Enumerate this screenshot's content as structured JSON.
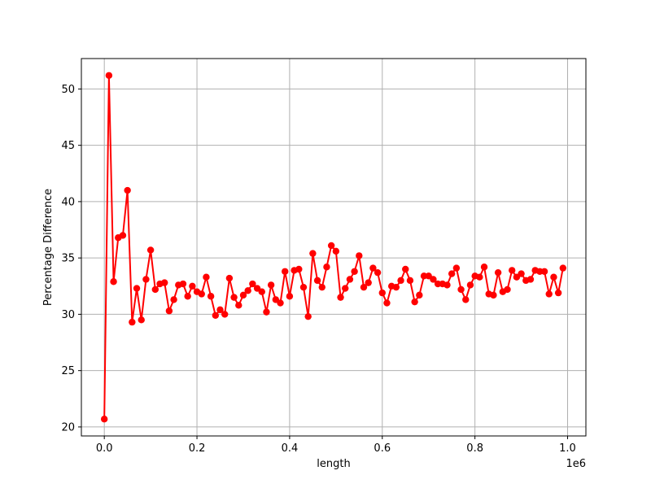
{
  "chart_data": {
    "type": "line",
    "xlabel": "length",
    "ylabel": "Percentage Difference",
    "x_offset_label": "1e6",
    "xlim": [
      -0.0495,
      1.0395
    ],
    "ylim": [
      19.2,
      52.7
    ],
    "xticks": [
      0.0,
      0.2,
      0.4,
      0.6,
      0.8,
      1.0
    ],
    "xtick_labels": [
      "0.0",
      "0.2",
      "0.4",
      "0.6",
      "0.8",
      "1.0"
    ],
    "yticks": [
      20,
      25,
      30,
      35,
      40,
      45,
      50
    ],
    "ytick_labels": [
      "20",
      "25",
      "30",
      "35",
      "40",
      "45",
      "50"
    ],
    "grid": true,
    "series": [
      {
        "color": "#ff0000",
        "marker": "circle",
        "x": [
          0.0,
          0.01,
          0.02,
          0.03,
          0.04,
          0.05,
          0.06,
          0.07,
          0.08,
          0.09,
          0.1,
          0.11,
          0.12,
          0.13,
          0.14,
          0.15,
          0.16,
          0.17,
          0.18,
          0.19,
          0.2,
          0.21,
          0.22,
          0.23,
          0.24,
          0.25,
          0.26,
          0.27,
          0.28,
          0.29,
          0.3,
          0.31,
          0.32,
          0.33,
          0.34,
          0.35,
          0.36,
          0.37,
          0.38,
          0.39,
          0.4,
          0.41,
          0.42,
          0.43,
          0.44,
          0.45,
          0.46,
          0.47,
          0.48,
          0.49,
          0.5,
          0.51,
          0.52,
          0.53,
          0.54,
          0.55,
          0.56,
          0.57,
          0.58,
          0.59,
          0.6,
          0.61,
          0.62,
          0.63,
          0.64,
          0.65,
          0.66,
          0.67,
          0.68,
          0.69,
          0.7,
          0.71,
          0.72,
          0.73,
          0.74,
          0.75,
          0.76,
          0.77,
          0.78,
          0.79,
          0.8,
          0.81,
          0.82,
          0.83,
          0.84,
          0.85,
          0.86,
          0.87,
          0.88,
          0.89,
          0.9,
          0.91,
          0.92,
          0.93,
          0.94,
          0.95,
          0.96,
          0.97,
          0.98,
          0.99
        ],
        "y": [
          20.7,
          51.2,
          32.9,
          36.8,
          37.0,
          41.0,
          29.3,
          32.3,
          29.5,
          33.1,
          35.7,
          32.2,
          32.7,
          32.8,
          30.3,
          31.3,
          32.6,
          32.7,
          31.6,
          32.5,
          32.0,
          31.8,
          33.3,
          31.6,
          29.9,
          30.4,
          30.0,
          33.2,
          31.5,
          30.8,
          31.7,
          32.1,
          32.7,
          32.3,
          32.0,
          30.2,
          32.6,
          31.3,
          31.0,
          33.8,
          31.6,
          33.9,
          34.0,
          32.4,
          29.8,
          35.4,
          33.0,
          32.4,
          34.2,
          36.1,
          35.6,
          31.5,
          32.3,
          33.1,
          33.8,
          35.2,
          32.4,
          32.8,
          34.1,
          33.7,
          31.9,
          31.0,
          32.5,
          32.4,
          33.0,
          34.0,
          33.0,
          31.1,
          31.7,
          33.4,
          33.4,
          33.1,
          32.7,
          32.7,
          32.6,
          33.6,
          34.1,
          32.2,
          31.3,
          32.6,
          33.4,
          33.3,
          34.2,
          31.8,
          31.7,
          33.7,
          32.0,
          32.2,
          33.9,
          33.3,
          33.6,
          33.0,
          33.1,
          33.9,
          33.8,
          33.8,
          31.8,
          33.3,
          31.9,
          34.1
        ]
      }
    ]
  }
}
